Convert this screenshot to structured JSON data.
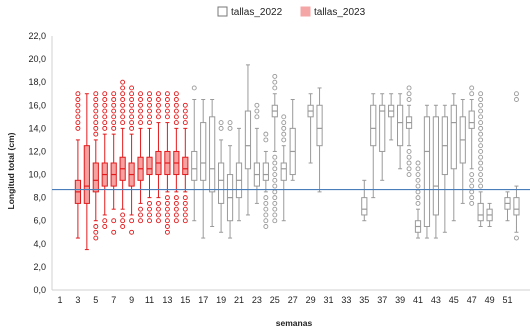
{
  "chart_data": {
    "type": "boxplot",
    "title": "",
    "xlabel": "semanas",
    "ylabel": "Longitud total (cm)",
    "ylim": [
      0,
      22
    ],
    "xlim": [
      1,
      52
    ],
    "y_ticks": [
      "0,0",
      "2,0",
      "4,0",
      "6,0",
      "8,0",
      "10,0",
      "12,0",
      "14,0",
      "16,0",
      "18,0",
      "20,0",
      "22,0"
    ],
    "x_ticks": [
      "1",
      "3",
      "5",
      "7",
      "9",
      "11",
      "13",
      "15",
      "17",
      "19",
      "21",
      "23",
      "25",
      "27",
      "29",
      "31",
      "33",
      "35",
      "37",
      "39",
      "41",
      "43",
      "45",
      "47",
      "49",
      "51"
    ],
    "grid": false,
    "legend_position": "top-center",
    "reference_line": {
      "y": 8.7,
      "color": "#4a7ebb"
    },
    "series": [
      {
        "name": "tallas_2023",
        "color": "#e31a1c",
        "boxes": [
          {
            "week": 3,
            "min": 4.5,
            "q1": 7.5,
            "median": 8.5,
            "q3": 9.5,
            "max": 13,
            "outliers": [
              14,
              14.5,
              15,
              15.5,
              16,
              16.5,
              17
            ]
          },
          {
            "week": 4,
            "min": 3.5,
            "q1": 7.5,
            "median": 9,
            "q3": 12.5,
            "max": 17,
            "outliers": []
          },
          {
            "week": 5,
            "min": 6,
            "q1": 8.5,
            "median": 9.5,
            "q3": 11,
            "max": 13,
            "outliers": [
              4.5,
              5,
              5.5,
              13.5,
              14,
              14.5,
              15,
              15.5,
              16,
              16.5,
              17
            ]
          },
          {
            "week": 6,
            "min": 6.5,
            "q1": 9,
            "median": 10,
            "q3": 11,
            "max": 13.5,
            "outliers": [
              5.5,
              6,
              14,
              14.5,
              15,
              15.5,
              16,
              16.5,
              17
            ]
          },
          {
            "week": 7,
            "min": 7,
            "q1": 9,
            "median": 10,
            "q3": 11,
            "max": 13.5,
            "outliers": [
              5,
              6,
              14,
              14.5,
              15,
              15.5,
              16,
              16.5,
              17
            ]
          },
          {
            "week": 8,
            "min": 7,
            "q1": 9.5,
            "median": 10.5,
            "q3": 11.5,
            "max": 14,
            "outliers": [
              5.5,
              6,
              6.5,
              14.5,
              15,
              15.5,
              16,
              16.5,
              17,
              17.5,
              18
            ]
          },
          {
            "week": 9,
            "min": 6.5,
            "q1": 9,
            "median": 10,
            "q3": 11,
            "max": 13.5,
            "outliers": [
              5,
              6,
              14,
              14.5,
              15,
              15.5,
              16,
              16.5,
              17,
              17.5
            ]
          },
          {
            "week": 10,
            "min": 7.5,
            "q1": 9.5,
            "median": 10.5,
            "q3": 11.5,
            "max": 14,
            "outliers": [
              6,
              6.5,
              7,
              14.5,
              15,
              15.5,
              16,
              16.5,
              17
            ]
          },
          {
            "week": 11,
            "min": 8,
            "q1": 10,
            "median": 10.5,
            "q3": 11.5,
            "max": 14,
            "outliers": [
              6,
              6.5,
              7,
              7.5,
              14.5,
              15,
              15.5,
              16,
              16.5,
              17
            ]
          },
          {
            "week": 12,
            "min": 8,
            "q1": 10,
            "median": 11,
            "q3": 12,
            "max": 14.5,
            "outliers": [
              6,
              6.5,
              7,
              7.5,
              15,
              15.5,
              16,
              16.5,
              17
            ]
          },
          {
            "week": 13,
            "min": 8.5,
            "q1": 10,
            "median": 11,
            "q3": 12,
            "max": 14.5,
            "outliers": [
              5,
              5.5,
              6,
              6.5,
              7,
              7.5,
              8,
              15,
              15.5,
              16,
              16.5,
              17
            ]
          },
          {
            "week": 14,
            "min": 8.5,
            "q1": 10,
            "median": 11,
            "q3": 12,
            "max": 14,
            "outliers": [
              6,
              6.5,
              7,
              7.5,
              8,
              14.5,
              15,
              15.5,
              16,
              16.5,
              17
            ]
          },
          {
            "week": 15,
            "min": 8.5,
            "q1": 10,
            "median": 10.5,
            "q3": 11.5,
            "max": 14,
            "outliers": [
              6,
              6.5,
              7,
              7.5,
              8,
              14.5,
              15,
              15.5,
              16
            ]
          }
        ]
      },
      {
        "name": "tallas_2022",
        "color": "#999999",
        "boxes": [
          {
            "week": 16,
            "min": 6,
            "q1": 9.5,
            "median": 10.5,
            "q3": 12,
            "max": 16.5,
            "outliers": [
              17.5
            ]
          },
          {
            "week": 17,
            "min": 4.5,
            "q1": 9.5,
            "median": 11,
            "q3": 14.5,
            "max": 16.5,
            "outliers": []
          },
          {
            "week": 18,
            "min": 5.5,
            "q1": 8.5,
            "median": 10.5,
            "q3": 15,
            "max": 16.5,
            "outliers": []
          },
          {
            "week": 19,
            "min": 5,
            "q1": 7.5,
            "median": 9.5,
            "q3": 11,
            "max": 13,
            "outliers": [
              14,
              14.5
            ]
          },
          {
            "week": 20,
            "min": 4.5,
            "q1": 6,
            "median": 8,
            "q3": 10,
            "max": 12.5,
            "outliers": [
              14,
              14.5
            ]
          },
          {
            "week": 21,
            "min": 6,
            "q1": 8,
            "median": 9.5,
            "q3": 11,
            "max": 14,
            "outliers": []
          },
          {
            "week": 22,
            "min": 6.5,
            "q1": 10.5,
            "median": 12.5,
            "q3": 15.5,
            "max": 19.5,
            "outliers": []
          },
          {
            "week": 23,
            "min": 7.5,
            "q1": 9,
            "median": 10,
            "q3": 11,
            "max": 14,
            "outliers": [
              15,
              15.5,
              16
            ]
          },
          {
            "week": 24,
            "min": 8.5,
            "q1": 9.5,
            "median": 10,
            "q3": 11,
            "max": 12,
            "outliers": [
              5.5,
              6,
              6.5,
              7,
              7.5,
              8,
              13,
              13.5
            ]
          },
          {
            "week": 25,
            "min": 12,
            "q1": 15,
            "median": 15.5,
            "q3": 16,
            "max": 17,
            "outliers": [
              17.5,
              18,
              18.5,
              6,
              6.5,
              7,
              7.5,
              8,
              8.5,
              9,
              9.5,
              10,
              10.5,
              11,
              11.5
            ]
          },
          {
            "week": 26,
            "min": 6,
            "q1": 9.5,
            "median": 10.5,
            "q3": 11,
            "max": 12.5,
            "outliers": [
              13,
              13.5,
              14,
              14.5,
              15
            ]
          },
          {
            "week": 27,
            "min": 9.5,
            "q1": 10,
            "median": 12,
            "q3": 14,
            "max": 16.5,
            "outliers": []
          },
          {
            "week": 29,
            "min": 11,
            "q1": 15,
            "median": 15.5,
            "q3": 16,
            "max": 17,
            "outliers": []
          },
          {
            "week": 30,
            "min": 8.5,
            "q1": 12.5,
            "median": 14,
            "q3": 16,
            "max": 17.5,
            "outliers": []
          },
          {
            "week": 35,
            "min": 6,
            "q1": 6.5,
            "median": 7,
            "q3": 8,
            "max": 9.5,
            "outliers": []
          },
          {
            "week": 36,
            "min": 8,
            "q1": 12.5,
            "median": 14,
            "q3": 16,
            "max": 17,
            "outliers": []
          },
          {
            "week": 37,
            "min": 9.5,
            "q1": 12,
            "median": 15.5,
            "q3": 16,
            "max": 17,
            "outliers": []
          },
          {
            "week": 38,
            "min": 13,
            "q1": 15,
            "median": 15.5,
            "q3": 16,
            "max": 17,
            "outliers": []
          },
          {
            "week": 39,
            "min": 10.5,
            "q1": 12.5,
            "median": 14.5,
            "q3": 16,
            "max": 17,
            "outliers": []
          },
          {
            "week": 40,
            "min": 12.5,
            "q1": 14,
            "median": 14.5,
            "q3": 15,
            "max": 16,
            "outliers": [
              10,
              10.5,
              11,
              11.5,
              12,
              16.5,
              17,
              17.5
            ]
          },
          {
            "week": 41,
            "min": 4.5,
            "q1": 5,
            "median": 5.5,
            "q3": 6,
            "max": 7,
            "outliers": [
              7.5,
              8,
              8.5,
              9,
              9.5,
              10,
              10.5,
              11
            ]
          },
          {
            "week": 42,
            "min": 4.5,
            "q1": 5.5,
            "median": 12,
            "q3": 15,
            "max": 16,
            "outliers": []
          },
          {
            "week": 43,
            "min": 4.5,
            "q1": 6.5,
            "median": 9,
            "q3": 15,
            "max": 16,
            "outliers": []
          },
          {
            "week": 44,
            "min": 5,
            "q1": 10,
            "median": 12.5,
            "q3": 15,
            "max": 16,
            "outliers": []
          },
          {
            "week": 45,
            "min": 6,
            "q1": 10.5,
            "median": 14.5,
            "q3": 16,
            "max": 17,
            "outliers": []
          },
          {
            "week": 46,
            "min": 7.5,
            "q1": 11,
            "median": 13,
            "q3": 15,
            "max": 16.5,
            "outliers": []
          },
          {
            "week": 47,
            "min": 10.5,
            "q1": 14,
            "median": 14.5,
            "q3": 15.5,
            "max": 16.5,
            "outliers": [
              7.5,
              8,
              8.5,
              9,
              9.5,
              10,
              17,
              17.5
            ]
          },
          {
            "week": 48,
            "min": 5.5,
            "q1": 6,
            "median": 6.5,
            "q3": 7.5,
            "max": 8.5,
            "outliers": [
              9,
              9.5,
              10,
              10.5,
              11,
              11.5,
              12,
              12.5,
              13,
              13.5,
              14,
              14.5,
              15,
              15.5,
              16,
              16.5,
              17
            ]
          },
          {
            "week": 49,
            "min": 5.5,
            "q1": 6,
            "median": 6.5,
            "q3": 7,
            "max": 7.5,
            "outliers": []
          },
          {
            "week": 51,
            "min": 6,
            "q1": 7,
            "median": 7.5,
            "q3": 8,
            "max": 8.5,
            "outliers": []
          },
          {
            "week": 52,
            "min": 5,
            "q1": 6.5,
            "median": 7,
            "q3": 8,
            "max": 9,
            "outliers": [
              4.5,
              16.5,
              17
            ]
          }
        ]
      }
    ]
  },
  "legend": [
    {
      "name": "tallas_2022",
      "color": "#ffffff",
      "border": "#777777"
    },
    {
      "name": "tallas_2023",
      "color": "#f4a6a6",
      "border": "#f4a6a6"
    }
  ]
}
